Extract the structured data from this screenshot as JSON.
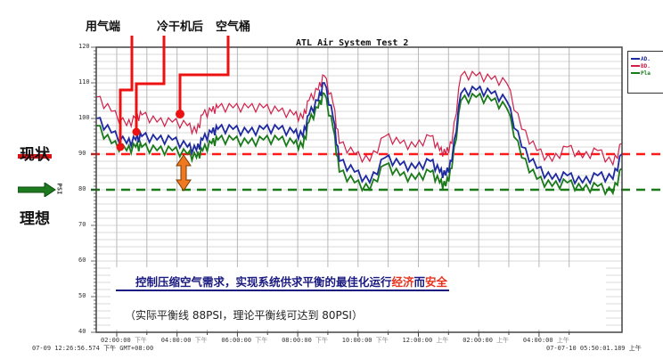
{
  "chart_data": {
    "type": "line",
    "title": "ATL Air System Test 2",
    "xlabel": "",
    "ylabel": "PSI",
    "ylim": [
      40,
      120
    ],
    "yticks": [
      40,
      50,
      60,
      70,
      80,
      90,
      100,
      110,
      120
    ],
    "grid": true,
    "legend_position": "right",
    "start_label": "07-09 12:26:56.574 下午 GMT+08:00",
    "end_label": "07-07-10 05:50:01.189 上午",
    "x_tick_labels": [
      {
        "time": "02:00:00",
        "ampm": "下午"
      },
      {
        "time": "04:00:00",
        "ampm": "下午"
      },
      {
        "time": "06:00:00",
        "ampm": "下午"
      },
      {
        "time": "08:00:00",
        "ampm": "下午"
      },
      {
        "time": "10:00:00",
        "ampm": "下午"
      },
      {
        "time": "12:00:00",
        "ampm": "上午"
      },
      {
        "time": "02:00:00",
        "ampm": "上午"
      },
      {
        "time": "04:00:00",
        "ampm": "上午"
      }
    ],
    "x_hours": [
      0,
      0.5,
      1,
      1.3,
      1.5,
      2,
      2.5,
      3,
      3.3,
      3.5,
      3.8,
      4,
      4.5,
      5,
      5.5,
      6,
      6.5,
      6.8,
      7,
      7.3,
      7.5,
      7.8,
      8,
      8.5,
      9,
      9.5,
      10,
      10.5,
      11,
      11.3,
      11.5,
      11.7,
      12,
      12.5,
      13,
      13.5,
      14,
      14.5,
      15,
      15.5,
      16,
      16.5,
      17,
      17.3
    ],
    "series": [
      {
        "name": "AD.",
        "color": "#1f2aa0",
        "values": [
          100,
          96,
          93,
          94,
          95,
          94,
          94,
          92,
          91,
          94,
          96,
          97,
          97,
          96,
          97,
          97,
          96,
          95,
          101,
          105,
          110,
          100,
          88,
          85,
          82,
          89,
          87,
          86,
          88,
          85,
          84,
          88,
          107,
          108,
          107,
          105,
          92,
          86,
          83,
          84,
          82,
          84,
          83,
          90
        ]
      },
      {
        "name": "BD.",
        "color": "#d0204a",
        "values": [
          106,
          102,
          98,
          100,
          101,
          99,
          99,
          98,
          96,
          101,
          102,
          103,
          103,
          103,
          103,
          102,
          101,
          100,
          105,
          108,
          112,
          104,
          93,
          90,
          88,
          95,
          93,
          92,
          95,
          91,
          90,
          93,
          112,
          112,
          111,
          110,
          97,
          91,
          88,
          92,
          89,
          91,
          87,
          93
        ]
      },
      {
        "name": "Pla",
        "color": "#1a7a1a",
        "values": [
          98,
          93,
          91,
          92,
          92,
          91,
          91,
          90,
          89,
          91,
          93,
          94,
          94,
          93,
          94,
          94,
          93,
          92,
          99,
          103,
          107,
          97,
          85,
          82,
          80,
          87,
          84,
          83,
          85,
          82,
          81,
          86,
          105,
          106,
          105,
          103,
          89,
          83,
          81,
          82,
          80,
          81,
          79,
          86
        ]
      }
    ],
    "reference_lines": [
      {
        "name": "现状",
        "value": 90,
        "color": "#ff1a1a",
        "style": "dashed"
      },
      {
        "name": "理想",
        "value": 80,
        "color": "#1a7a1a",
        "style": "dashed"
      }
    ]
  },
  "annotations": {
    "sensor_labels": [
      "用气端",
      "冷干机后",
      "空气桶"
    ],
    "current_label": "现状",
    "ideal_label": "理想",
    "axis_unit": "PSI",
    "main_note_prefix": "控制压缩空气需求，实现系统供求平衡的最佳化运行",
    "main_note_hl1": "经济",
    "main_note_mid": "而",
    "main_note_hl2": "安全",
    "sub_note": "（实际平衡线 88PSI，理论平衡线可达到 80PSI）"
  },
  "legend": {
    "items": [
      {
        "label": "AD.",
        "color": "#1f2aa0"
      },
      {
        "label": "BD.",
        "color": "#d0204a"
      },
      {
        "label": "Pla",
        "color": "#1a7a1a"
      }
    ]
  }
}
